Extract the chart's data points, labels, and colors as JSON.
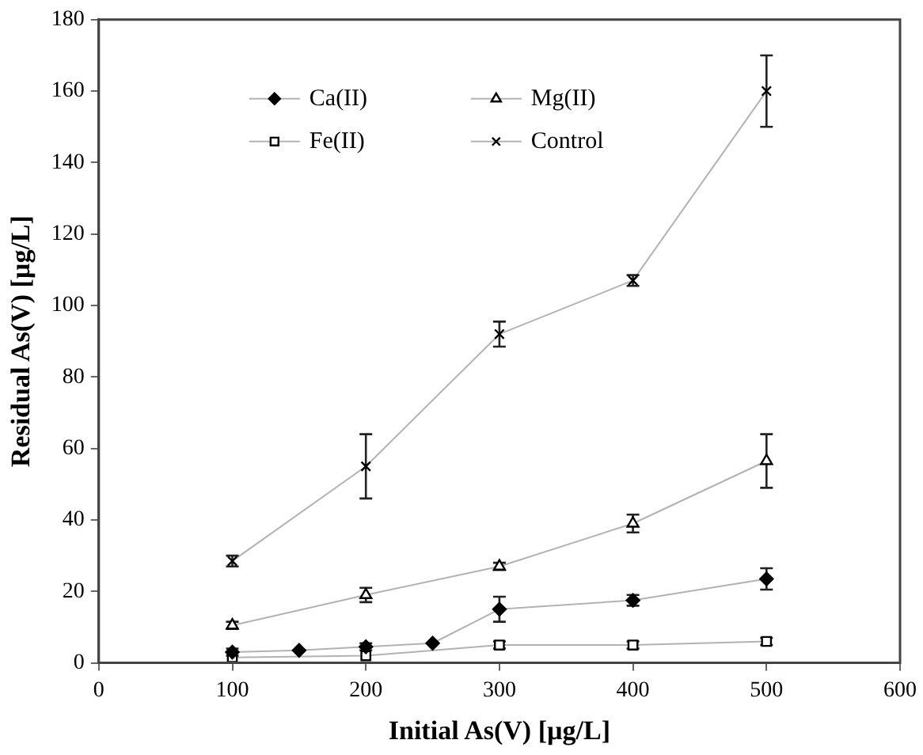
{
  "chart_data": {
    "type": "line",
    "xlabel": "Initial As(V) [µg/L]",
    "ylabel": "Residual As(V) [µg/L]",
    "xlim": [
      0,
      600
    ],
    "xticks": [
      0,
      100,
      200,
      300,
      400,
      500,
      600
    ],
    "ylim": [
      0,
      180
    ],
    "yticks": [
      0,
      20,
      40,
      60,
      80,
      100,
      120,
      140,
      160,
      180
    ],
    "grid": false,
    "legend": "top left",
    "line_style": "solid",
    "series": [
      {
        "name": "Ca(II)",
        "color": "#000000",
        "marker": "diamond",
        "x": [
          100,
          150,
          200,
          250,
          300,
          400,
          500
        ],
        "values": [
          3,
          3.5,
          4.5,
          5.5,
          15,
          17.5,
          23.5
        ],
        "errors": [
          1,
          null,
          1,
          null,
          3.5,
          1.5,
          3
        ]
      },
      {
        "name": "Mg(II)",
        "color": "#000000",
        "marker": "triangle",
        "x": [
          100,
          200,
          300,
          400,
          500
        ],
        "values": [
          10.5,
          19,
          27,
          39,
          56.5
        ],
        "errors": [
          1,
          2,
          1,
          2.5,
          7.5
        ]
      },
      {
        "name": "Fe(II)",
        "color": "#000000",
        "marker": "square",
        "x": [
          100,
          200,
          300,
          400,
          500
        ],
        "values": [
          1.5,
          2,
          5,
          5,
          6
        ],
        "errors": [
          null,
          null,
          1,
          1,
          1
        ]
      },
      {
        "name": "Control",
        "color": "#000000",
        "marker": "cross",
        "x": [
          100,
          200,
          300,
          400,
          500
        ],
        "values": [
          28.5,
          55,
          92,
          107,
          160
        ],
        "errors": [
          1.5,
          9,
          3.5,
          1.5,
          10
        ]
      }
    ]
  }
}
